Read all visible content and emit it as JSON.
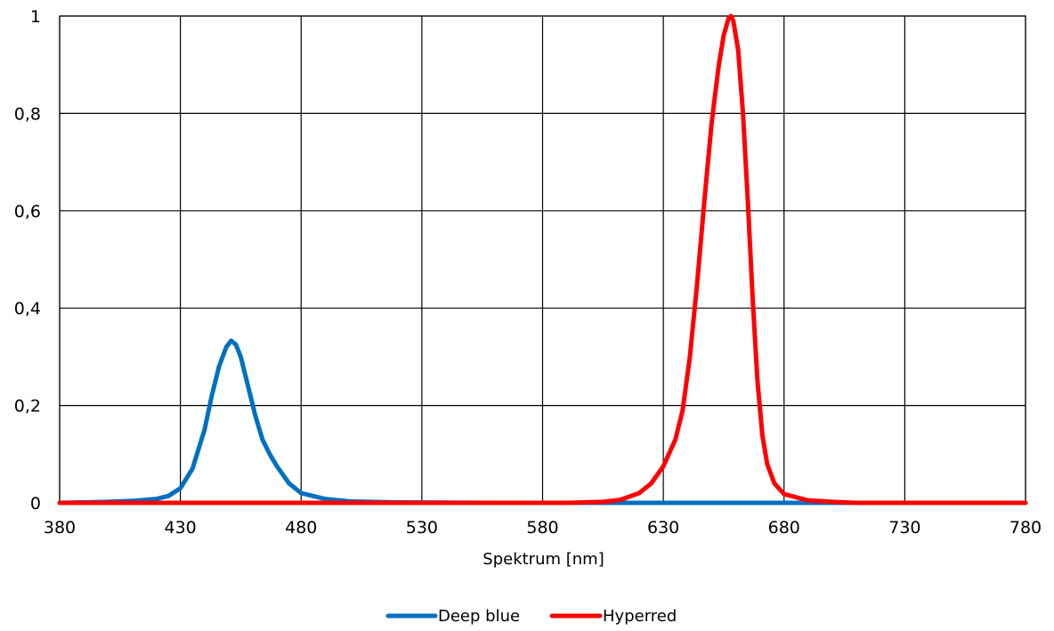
{
  "chart_data": {
    "type": "line",
    "title": "",
    "xlabel": "Spektrum [nm]",
    "ylabel": "",
    "xlim": [
      380,
      780
    ],
    "ylim": [
      0,
      1
    ],
    "x_ticks": [
      380,
      430,
      480,
      530,
      580,
      630,
      680,
      730,
      780
    ],
    "y_ticks": [
      0,
      0.2,
      0.4,
      0.6,
      0.8,
      1
    ],
    "x_tick_labels": [
      "380",
      "430",
      "480",
      "530",
      "580",
      "630",
      "680",
      "730",
      "780"
    ],
    "y_tick_labels": [
      "0",
      "0,2",
      "0,4",
      "0,6",
      "0,8",
      "1"
    ],
    "grid": true,
    "legend_position": "bottom",
    "series": [
      {
        "name": "Deep blue",
        "color": "#0070C0",
        "points": [
          [
            380,
            0
          ],
          [
            400,
            0.002
          ],
          [
            410,
            0.004
          ],
          [
            420,
            0.008
          ],
          [
            425,
            0.014
          ],
          [
            430,
            0.03
          ],
          [
            435,
            0.07
          ],
          [
            440,
            0.15
          ],
          [
            443,
            0.22
          ],
          [
            446,
            0.28
          ],
          [
            449,
            0.32
          ],
          [
            451,
            0.333
          ],
          [
            453,
            0.325
          ],
          [
            455,
            0.3
          ],
          [
            458,
            0.24
          ],
          [
            461,
            0.18
          ],
          [
            464,
            0.13
          ],
          [
            467,
            0.1
          ],
          [
            470,
            0.075
          ],
          [
            475,
            0.04
          ],
          [
            480,
            0.02
          ],
          [
            490,
            0.008
          ],
          [
            500,
            0.003
          ],
          [
            520,
            0.001
          ],
          [
            560,
            0
          ],
          [
            780,
            0
          ]
        ]
      },
      {
        "name": "Hyperred",
        "color": "#FF0000",
        "points": [
          [
            380,
            0
          ],
          [
            590,
            0
          ],
          [
            605,
            0.002
          ],
          [
            612,
            0.006
          ],
          [
            620,
            0.02
          ],
          [
            625,
            0.04
          ],
          [
            630,
            0.075
          ],
          [
            635,
            0.13
          ],
          [
            638,
            0.19
          ],
          [
            641,
            0.3
          ],
          [
            644,
            0.45
          ],
          [
            647,
            0.62
          ],
          [
            650,
            0.78
          ],
          [
            653,
            0.9
          ],
          [
            655,
            0.96
          ],
          [
            657,
            0.995
          ],
          [
            658,
            1.0
          ],
          [
            659,
            0.99
          ],
          [
            661,
            0.93
          ],
          [
            663,
            0.8
          ],
          [
            665,
            0.62
          ],
          [
            667,
            0.42
          ],
          [
            669,
            0.25
          ],
          [
            671,
            0.14
          ],
          [
            673,
            0.08
          ],
          [
            676,
            0.04
          ],
          [
            680,
            0.018
          ],
          [
            690,
            0.005
          ],
          [
            700,
            0.002
          ],
          [
            710,
            0
          ],
          [
            780,
            0
          ]
        ]
      }
    ]
  }
}
